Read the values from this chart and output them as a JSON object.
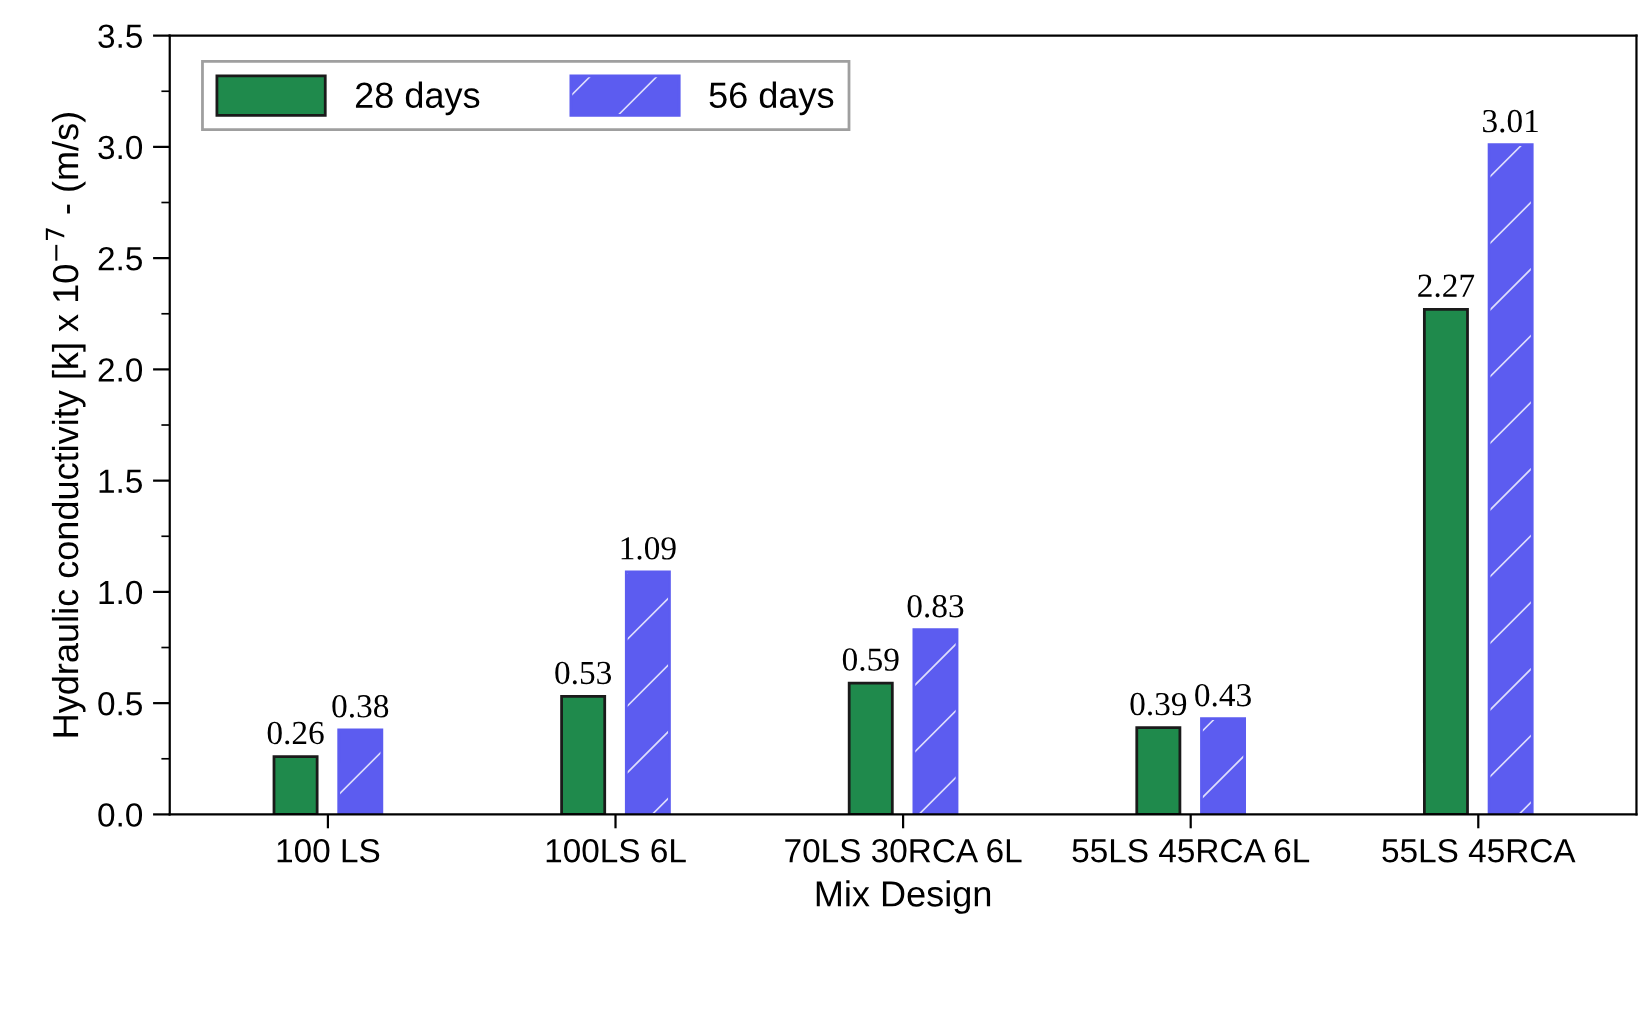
{
  "chart_data": {
    "type": "bar",
    "xlabel": "Mix Design",
    "ylabel": "Hydraulic conductivity [k] x 10$^{−7}$ - (m/s)",
    "categories": [
      "100 LS",
      "100LS 6L",
      "70LS 30RCA 6L",
      "55LS 45RCA 6L",
      "55LS 45RCA"
    ],
    "series": [
      {
        "name": "28 days",
        "color": "#1f8a4c",
        "values": [
          0.26,
          0.53,
          0.59,
          0.39,
          2.27
        ]
      },
      {
        "name": "56 days",
        "color": "#5c5cf0",
        "values": [
          0.38,
          1.09,
          0.83,
          0.43,
          3.01
        ]
      }
    ],
    "ylim": [
      0,
      3.5
    ],
    "yticks": [
      {
        "value": 0,
        "label": "0.0"
      },
      0.5,
      {
        "value": 1,
        "label": "1.0"
      },
      1.5,
      {
        "value": 2,
        "label": "2.0"
      },
      2.5,
      {
        "value": 3,
        "label": "3.0"
      },
      3.5
    ],
    "data_labels": true,
    "legend": "top left",
    "grid": false
  }
}
